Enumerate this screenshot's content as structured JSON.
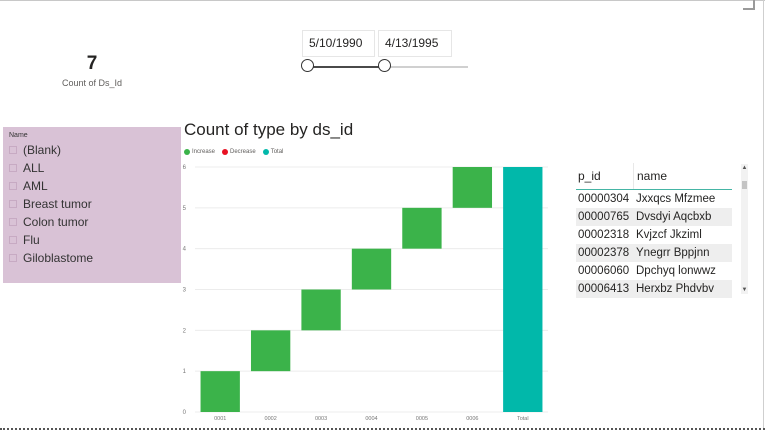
{
  "kpi": {
    "value": "7",
    "label": "Count of Ds_Id"
  },
  "date_slicer": {
    "start": "5/10/1990",
    "end": "4/13/1995",
    "range_fraction": [
      0.0,
      0.49
    ]
  },
  "slicer": {
    "header": "Name",
    "items": [
      "(Blank)",
      "ALL",
      "AML",
      "Breast tumor",
      "Colon tumor",
      "Flu",
      "Giloblastome"
    ]
  },
  "chart": {
    "title": "Count of type by ds_id",
    "legend": [
      {
        "label": "Increase",
        "color": "#3bb34a"
      },
      {
        "label": "Decrease",
        "color": "#e81123"
      },
      {
        "label": "Total",
        "color": "#01b8aa"
      }
    ]
  },
  "chart_data": {
    "type": "bar",
    "subtype": "waterfall",
    "title": "Count of type by ds_id",
    "categories": [
      "0001",
      "0002",
      "0003",
      "0004",
      "0005",
      "0006",
      "Total"
    ],
    "increments": [
      1,
      1,
      1,
      1,
      1,
      1
    ],
    "total": 6,
    "yticks": [
      "0",
      "1",
      "2",
      "3",
      "4",
      "5",
      "6"
    ],
    "ylim": [
      0,
      6
    ],
    "grid": true,
    "legend_position": "top-left",
    "colors": {
      "increase": "#3bb34a",
      "decrease": "#e81123",
      "total": "#01b8aa"
    }
  },
  "table": {
    "columns": [
      "p_id",
      "name"
    ],
    "rows": [
      [
        "00000304",
        "Jxxqcs Mfzmee"
      ],
      [
        "00000765",
        "Dvsdyi Aqcbxb"
      ],
      [
        "00002318",
        "Kvjzcf Jkziml"
      ],
      [
        "00002378",
        "Ynegrr Bppjnn"
      ],
      [
        "00006060",
        "Dpchyq lonwwz"
      ],
      [
        "00006413",
        "Herxbz Phdvbv"
      ]
    ]
  },
  "icons": {
    "scroll_up": "▲",
    "scroll_down": "▼"
  }
}
